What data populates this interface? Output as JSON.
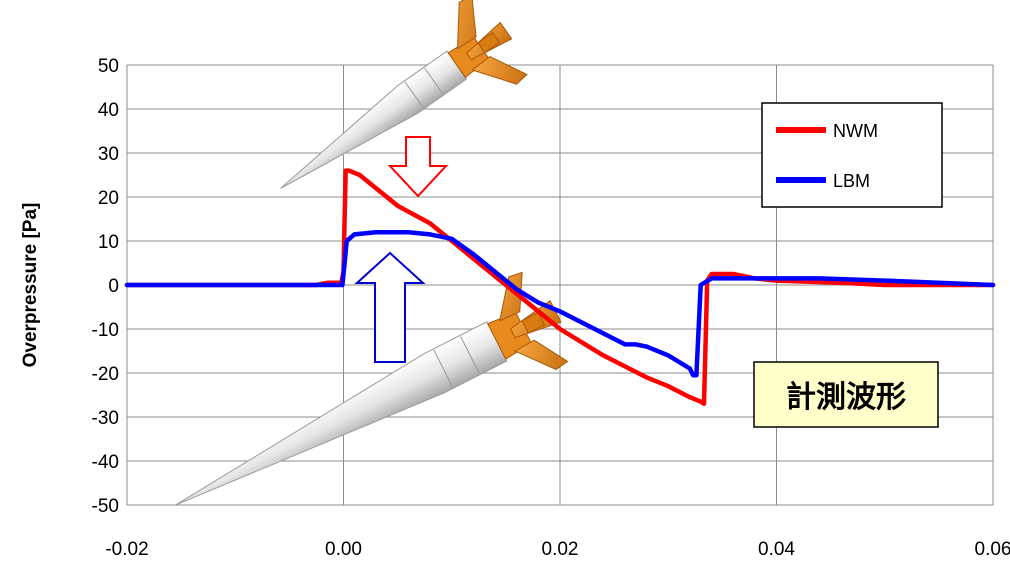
{
  "chart_data": {
    "type": "line",
    "xlabel": "",
    "ylabel": "Overpressure [Pa]",
    "xlim": [
      -0.02,
      0.06
    ],
    "ylim": [
      -50,
      50
    ],
    "x_ticks": [
      "-0.02",
      "0.00",
      "0.02",
      "0.04",
      "0.06"
    ],
    "y_ticks": [
      "50",
      "40",
      "30",
      "20",
      "10",
      "0",
      "-10",
      "-20",
      "-30",
      "-40",
      "-50"
    ],
    "grid": true,
    "legend_position": "top-right",
    "annotation": "計測波形",
    "series": [
      {
        "name": "NWM",
        "color": "#ff0000",
        "x": [
          -0.02,
          -0.0025,
          -0.0015,
          -0.0002,
          0.0,
          0.0001,
          0.0002,
          0.0005,
          0.0015,
          0.003,
          0.005,
          0.008,
          0.012,
          0.016,
          0.018,
          0.02,
          0.024,
          0.028,
          0.03,
          0.032,
          0.033,
          0.0333,
          0.0336,
          0.034,
          0.036,
          0.038,
          0.04,
          0.046,
          0.05,
          0.054,
          0.06
        ],
        "y": [
          0,
          0,
          0.5,
          0.5,
          3,
          15,
          26,
          26,
          25,
          22,
          18,
          14,
          6,
          -2,
          -6,
          -10,
          -16,
          -21,
          -23,
          -25.5,
          -26.5,
          -27,
          1,
          2.5,
          2.5,
          1.5,
          1,
          0.5,
          0,
          0,
          0
        ]
      },
      {
        "name": "LBM",
        "color": "#0000ff",
        "x": [
          -0.02,
          -0.0001,
          0.0001,
          0.0003,
          0.001,
          0.003,
          0.006,
          0.008,
          0.01,
          0.012,
          0.016,
          0.018,
          0.02,
          0.022,
          0.024,
          0.026,
          0.027,
          0.028,
          0.03,
          0.031,
          0.032,
          0.0323,
          0.0326,
          0.033,
          0.034,
          0.036,
          0.04,
          0.044,
          0.05,
          0.06
        ],
        "y": [
          0,
          0,
          5,
          10,
          11.5,
          12,
          12,
          11.5,
          10.5,
          7,
          -1,
          -4,
          -6,
          -8.5,
          -11,
          -13.5,
          -13.5,
          -14,
          -16,
          -17.5,
          -19,
          -20.5,
          -20.5,
          0,
          1.5,
          1.5,
          1.5,
          1.5,
          1,
          0
        ]
      }
    ]
  }
}
